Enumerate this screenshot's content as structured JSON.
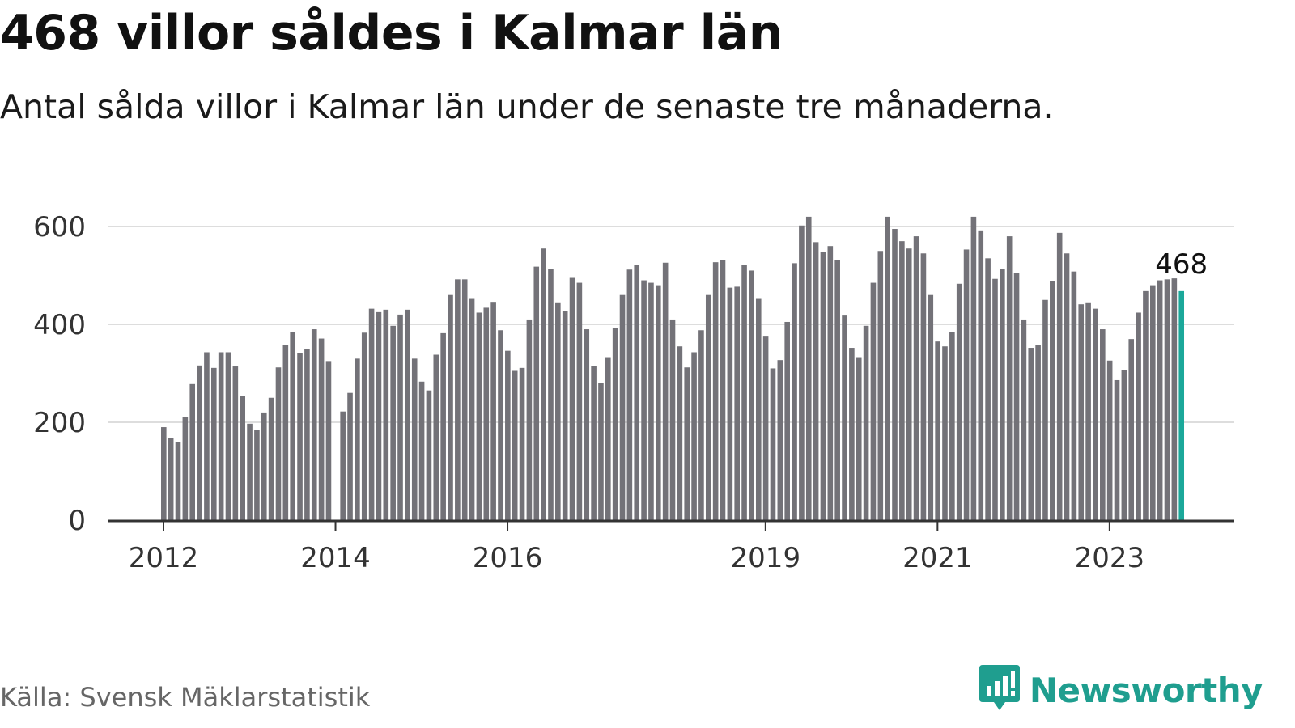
{
  "title": "468 villor såldes i Kalmar län",
  "subtitle": "Antal sålda villor i Kalmar län under de senaste tre månaderna.",
  "source": "Källa: Svensk Mäklarstatistik",
  "brand": {
    "name": "Newsworthy",
    "icon": "newsworthy-logo-icon"
  },
  "colors": {
    "bar": "#737278",
    "highlight": "#1ba89a",
    "grid": "#dddddd",
    "axis": "#333333",
    "brand": "#1f9e8f"
  },
  "chart_data": {
    "type": "bar",
    "start": "2012-01",
    "ylim": [
      0,
      600
    ],
    "yticks": [
      0,
      200,
      400,
      600
    ],
    "xticks": [
      {
        "label": "2012",
        "index": 0
      },
      {
        "label": "2014",
        "index": 24
      },
      {
        "label": "2016",
        "index": 48
      },
      {
        "label": "2019",
        "index": 84
      },
      {
        "label": "2021",
        "index": 108
      },
      {
        "label": "2023",
        "index": 132
      }
    ],
    "highlight_label": "468",
    "values": [
      190,
      167,
      159,
      210,
      278,
      316,
      343,
      311,
      343,
      343,
      314,
      253,
      197,
      185,
      220,
      250,
      312,
      358,
      385,
      342,
      350,
      390,
      371,
      325,
      null,
      222,
      260,
      330,
      383,
      432,
      425,
      430,
      397,
      420,
      430,
      330,
      283,
      265,
      338,
      382,
      460,
      492,
      492,
      452,
      424,
      434,
      446,
      388,
      346,
      305,
      311,
      410,
      518,
      555,
      513,
      445,
      428,
      495,
      485,
      390,
      315,
      280,
      333,
      392,
      460,
      512,
      522,
      490,
      485,
      480,
      526,
      410,
      355,
      312,
      343,
      388,
      460,
      527,
      532,
      475,
      477,
      522,
      510,
      452,
      375,
      310,
      327,
      405,
      525,
      602,
      620,
      568,
      548,
      560,
      532,
      418,
      352,
      333,
      397,
      485,
      550,
      620,
      595,
      570,
      555,
      580,
      545,
      460,
      365,
      355,
      385,
      483,
      553,
      620,
      592,
      535,
      493,
      513,
      580,
      505,
      410,
      352,
      357,
      450,
      488,
      587,
      545,
      508,
      441,
      445,
      432,
      390,
      326,
      286,
      307,
      370,
      424,
      468,
      480,
      490,
      492,
      494,
      468
    ]
  }
}
